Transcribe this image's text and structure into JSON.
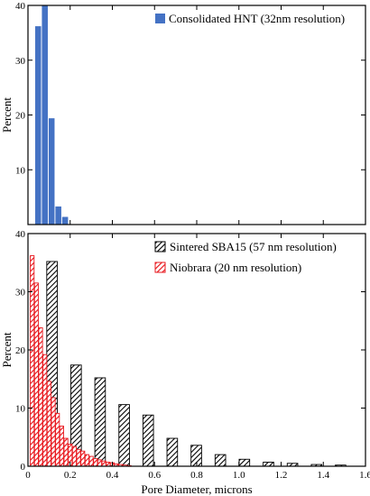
{
  "chart_data": [
    {
      "type": "bar",
      "panel": "top",
      "ylabel": "Percent",
      "xlabel": "",
      "xlim": [
        0,
        1.6
      ],
      "ylim": [
        0,
        40
      ],
      "yticks": [
        10,
        20,
        30,
        40
      ],
      "xticks": [
        0,
        0.2,
        0.4,
        0.6,
        0.8,
        1.0,
        1.2,
        1.4,
        1.6
      ],
      "show_x_tick_labels": false,
      "grid": false,
      "legend_position": "top-right",
      "colors": {
        "bar": "#4472c4"
      },
      "series": [
        {
          "name": "Consolidated HNT (32nm resolution)",
          "pattern": "solid",
          "bar_width": 0.028,
          "x": [
            0.048,
            0.08,
            0.112,
            0.144,
            0.176
          ],
          "values": [
            36.2,
            40.0,
            19.4,
            3.3,
            1.4
          ]
        }
      ]
    },
    {
      "type": "bar",
      "panel": "bottom",
      "ylabel": "Percent",
      "xlabel": "Pore Diameter, microns",
      "xlim": [
        0,
        1.6
      ],
      "ylim": [
        0,
        40
      ],
      "yticks": [
        0,
        10,
        20,
        30,
        40
      ],
      "xticks": [
        0,
        0.2,
        0.4,
        0.6,
        0.8,
        1.0,
        1.2,
        1.4,
        1.6
      ],
      "tick_labels": [
        "0",
        "0.2",
        "0.4",
        "0.6",
        "0.8",
        "1.0",
        "1.2",
        "1.4",
        "1.6"
      ],
      "show_x_tick_labels": true,
      "grid": false,
      "legend_position": "top-right",
      "colors": {
        "sba15": "#000000",
        "niobrara": "#e8191f"
      },
      "series": [
        {
          "name": "Sintered SBA15 (57 nm resolution)",
          "pattern": "hatch-black",
          "bar_width": 0.05,
          "x": [
            0.114,
            0.228,
            0.342,
            0.456,
            0.57,
            0.684,
            0.798,
            0.912,
            1.026,
            1.14,
            1.254,
            1.368,
            1.482
          ],
          "values": [
            35.2,
            17.4,
            15.2,
            10.6,
            8.8,
            4.8,
            3.6,
            2.0,
            1.2,
            0.7,
            0.5,
            0.3,
            0.2
          ]
        },
        {
          "name": "Niobrara (20 nm resolution)",
          "pattern": "hatch-red",
          "bar_width": 0.018,
          "x": [
            0.02,
            0.04,
            0.06,
            0.08,
            0.1,
            0.12,
            0.14,
            0.16,
            0.18,
            0.2,
            0.22,
            0.24,
            0.26,
            0.28,
            0.3,
            0.32,
            0.34,
            0.36,
            0.38,
            0.4,
            0.42,
            0.44,
            0.46,
            0.48
          ],
          "values": [
            36.2,
            31.5,
            23.8,
            19.2,
            14.6,
            11.8,
            9.1,
            6.9,
            4.8,
            3.8,
            3.4,
            2.9,
            2.6,
            2.0,
            1.7,
            1.3,
            1.1,
            0.9,
            0.7,
            0.6,
            0.4,
            0.3,
            0.2,
            0.1
          ]
        }
      ]
    }
  ]
}
